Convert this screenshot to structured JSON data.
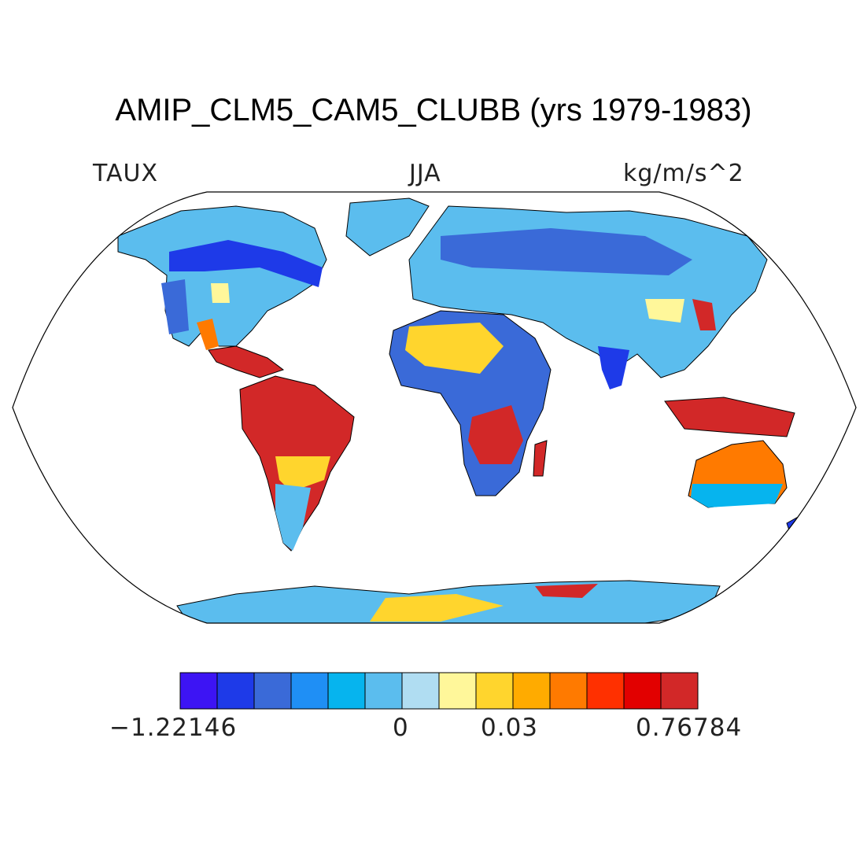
{
  "title": "AMIP_CLM5_CAM5_CLUBB (yrs 1979-1983)",
  "left_string": "TAUX",
  "center_string": "JJA",
  "right_string": "kg/m/s^2",
  "colorbar": {
    "colors": [
      "#3d14f4",
      "#1e3ae8",
      "#3a6ad8",
      "#1f8ff5",
      "#06b4ee",
      "#5bbdee",
      "#b0ddf2",
      "#fff79a",
      "#ffd52d",
      "#ffab00",
      "#ff7a00",
      "#ff3000",
      "#e20000",
      "#d22828"
    ],
    "labels": [
      "−1.22146",
      "0",
      "0.03",
      "0.76784"
    ]
  }
}
